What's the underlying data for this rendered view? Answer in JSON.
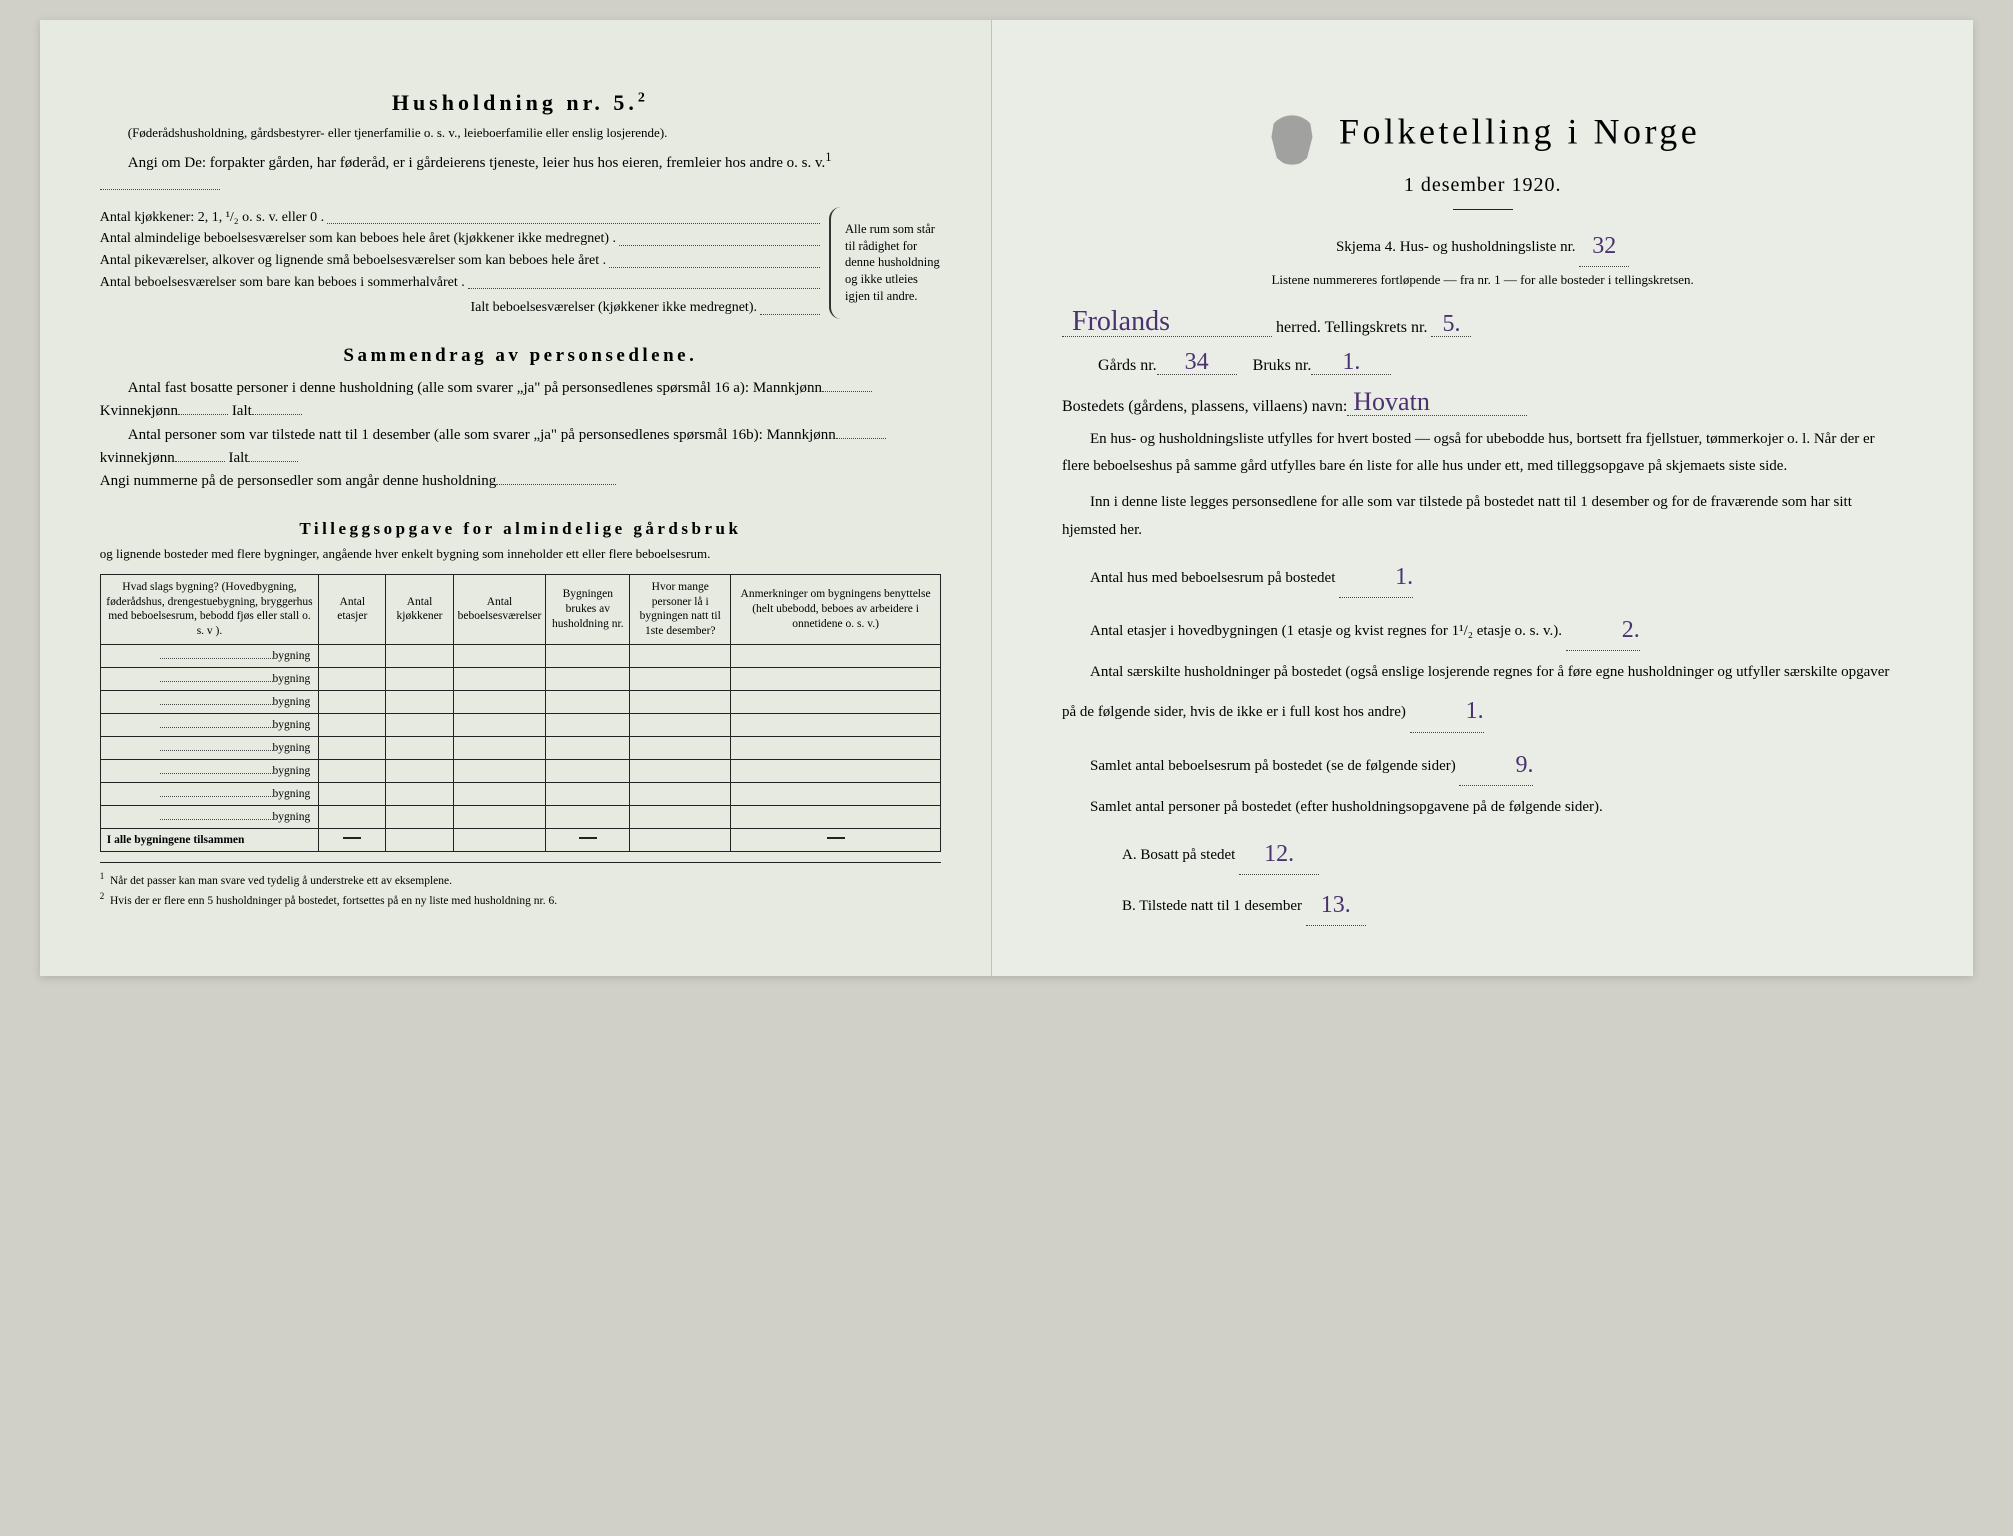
{
  "left": {
    "heading": "Husholdning nr. 5.",
    "heading_sup": "2",
    "sub1": "(Føderådshusholdning, gårdsbestyrer- eller tjenerfamilie o. s. v., leieboerfamilie eller enslig losjerende).",
    "sub2a": "Angi om De: forpakter gården, har føderåd, er i gårdeierens tjeneste, leier hus hos eieren, fremleier hos andre o. s. v.",
    "sub2_sup": "1",
    "rows": {
      "r1": "Antal kjøkkener: 2, 1, ¹/₂ o. s. v. eller 0 .",
      "r2": "Antal almindelige beboelsesværelser som kan beboes hele året (kjøkkener ikke medregnet) .",
      "r3": "Antal pikeværelser, alkover og lignende små beboelsesværelser som kan beboes hele året .",
      "r4": "Antal beboelsesværelser som bare kan beboes i sommerhalvåret .",
      "r_sum": "Ialt beboelsesværelser (kjøkkener ikke medregnet)."
    },
    "brace_text": "Alle rum som står til rådighet for denne husholdning og ikke utleies igjen til andre.",
    "sammendrag": {
      "title": "Sammendrag av personsedlene.",
      "p1a": "Antal fast bosatte personer i denne husholdning (alle som svarer „ja\" på personsedlenes spørsmål 16 a): Mannkjønn",
      "p1b": "Kvinnekjønn",
      "p1c": "Ialt",
      "p2a": "Antal personer som var tilstede natt til 1 desember (alle som svarer „ja\" på personsedlenes spørsmål 16b): Mannkjønn",
      "p2b": "kvinnekjønn",
      "p2c": "Ialt",
      "p3": "Angi nummerne på de personsedler som angår denne husholdning"
    },
    "tillegg": {
      "title": "Tilleggsopgave for almindelige gårdsbruk",
      "sub": "og lignende bosteder med flere bygninger, angående hver enkelt bygning som inneholder ett eller flere beboelsesrum."
    },
    "table": {
      "headers": [
        "Hvad slags bygning?\n(Hovedbygning, føderådshus, drengestuebygning, bryggerhus med beboelsesrum, bebodd fjøs eller stall o. s. v ).",
        "Antal etasjer",
        "Antal kjøkkener",
        "Antal beboelsesværelser",
        "Bygningen brukes av husholdning nr.",
        "Hvor mange personer lå i bygningen natt til 1ste desember?",
        "Anmerkninger om bygningens benyttelse (helt ubebodd, beboes av arbeidere i onnetidene o. s. v.)"
      ],
      "row_label": "bygning",
      "row_count": 8,
      "sum_label": "I alle bygningene tilsammen"
    },
    "footnotes": {
      "n1_num": "1",
      "n1": "Når det passer kan man svare ved tydelig å understreke ett av eksemplene.",
      "n2_num": "2",
      "n2": "Hvis der er flere enn 5 husholdninger på bostedet, fortsettes på en ny liste med husholdning nr. 6."
    }
  },
  "right": {
    "title": "Folketelling i Norge",
    "subtitle": "1 desember 1920.",
    "skjema_a": "Skjema 4.  Hus- og husholdningsliste nr.",
    "skjema_val": "32",
    "listene": "Listene nummereres fortløpende — fra nr. 1 — for alle bosteder i tellingskretsen.",
    "herred_val": "Frolands",
    "herred_lbl": "herred.  Tellingskrets nr.",
    "krets_val": "5.",
    "gards_lbl": "Gårds nr.",
    "gards_val": "34",
    "bruks_lbl": "Bruks nr.",
    "bruks_val": "1.",
    "bosted_lbl": "Bostedets (gårdens, plassens, villaens) navn:",
    "bosted_val": "Hovatn",
    "p1": "En hus- og husholdningsliste utfylles for hvert bosted — også for ubebodde hus, bortsett fra fjellstuer, tømmerkojer o. l. Når der er flere beboelseshus på samme gård utfylles bare én liste for alle hus under ett, med tilleggsopgave på skjemaets siste side.",
    "p2": "Inn i denne liste legges personsedlene for alle som var tilstede på bostedet natt til 1 desember og for de fraværende som har sitt hjemsted her.",
    "l1": "Antal hus med beboelsesrum på bostedet",
    "l1_val": "1.",
    "l2a": "Antal etasjer i hovedbygningen (1 etasje og kvist regnes for 1¹/₂ etasje o. s. v.).",
    "l2_val": "2.",
    "l3a": "Antal særskilte husholdninger på bostedet (også enslige losjerende regnes for å føre egne husholdninger og utfyller særskilte opgaver på de følgende sider, hvis de ikke er i full kost hos andre)",
    "l3_val": "1.",
    "l4": "Samlet antal beboelsesrum på bostedet (se de følgende sider)",
    "l4_val": "9.",
    "l5": "Samlet antal personer på bostedet (efter husholdningsopgavene på de følgende sider).",
    "lA": "A.  Bosatt på stedet",
    "lA_val": "12.",
    "lB": "B.  Tilstede natt til 1 desember",
    "lB_val": "13."
  },
  "colors": {
    "paper": "#e8ebe3",
    "ink": "#222222",
    "handwriting": "#4a3270"
  }
}
